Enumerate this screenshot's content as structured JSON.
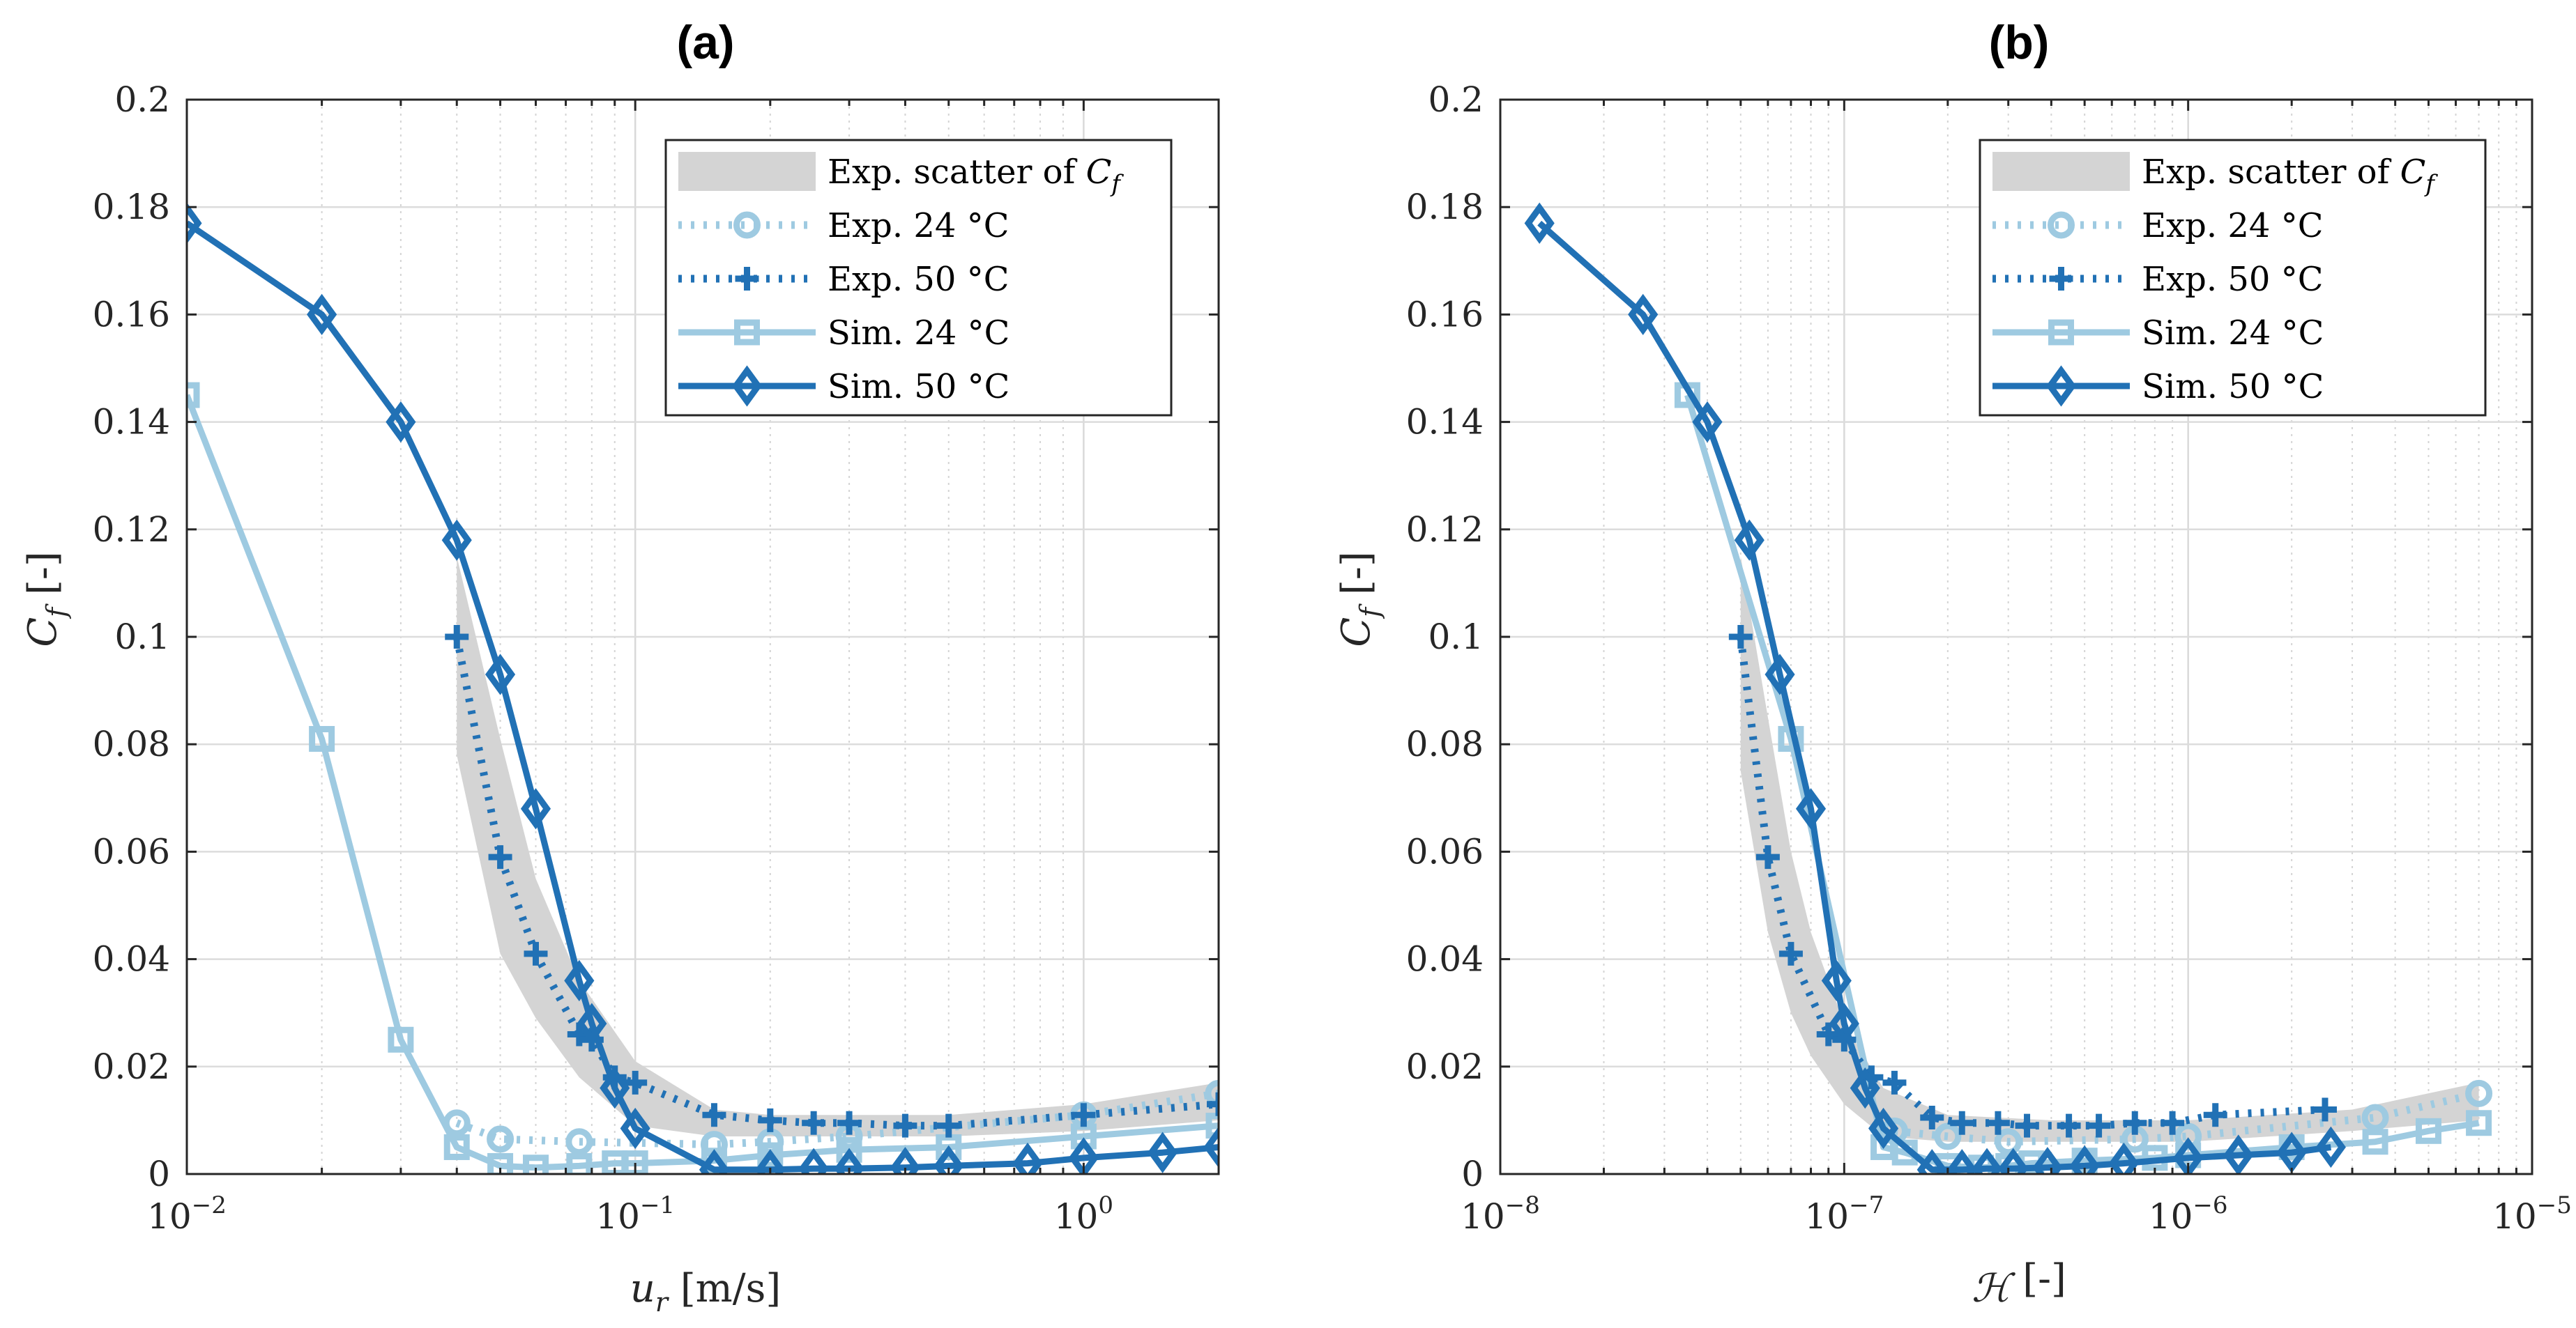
{
  "figure": {
    "panels": [
      {
        "title": "(a)",
        "xlabel": "u_r [m/s]",
        "xlabel_main": "u",
        "xlabel_sub": "r",
        "xlabel_rest": " [m/s]",
        "ylabel": "C_f [-]",
        "ylabel_main": "C",
        "ylabel_sub": "f",
        "ylabel_rest": " [-]",
        "xticks": [
          {
            "value": 0.01,
            "mantissa": "10",
            "exp": "−2"
          },
          {
            "value": 0.1,
            "mantissa": "10",
            "exp": "−1"
          },
          {
            "value": 1,
            "mantissa": "10",
            "exp": "0"
          }
        ]
      },
      {
        "title": "(b)",
        "xlabel": "H [-]",
        "xlabel_main": "ℋ",
        "xlabel_sub": "",
        "xlabel_rest": " [-]",
        "ylabel": "C_f [-]",
        "ylabel_main": "C",
        "ylabel_sub": "f",
        "ylabel_rest": " [-]",
        "xticks": [
          {
            "value": 1e-08,
            "mantissa": "10",
            "exp": "−8"
          },
          {
            "value": 1e-07,
            "mantissa": "10",
            "exp": "−7"
          },
          {
            "value": 1e-06,
            "mantissa": "10",
            "exp": "−6"
          },
          {
            "value": 1e-05,
            "mantissa": "10",
            "exp": "−5"
          }
        ]
      }
    ],
    "yticks": [
      "0",
      "0.02",
      "0.04",
      "0.06",
      "0.08",
      "0.1",
      "0.12",
      "0.14",
      "0.16",
      "0.18",
      "0.2"
    ],
    "legend": [
      {
        "key": "scatter",
        "label": "Exp. scatter of ",
        "label_math": "C",
        "label_sub": "f"
      },
      {
        "key": "exp24",
        "label": "Exp. 24 °C"
      },
      {
        "key": "exp50",
        "label": "Exp. 50 °C"
      },
      {
        "key": "sim24",
        "label": "Sim. 24 °C"
      },
      {
        "key": "sim50",
        "label": "Sim. 50 °C"
      }
    ],
    "colors": {
      "light": "#9ecae1",
      "dark": "#2171b5",
      "scatter_fill": "#d4d4d4",
      "grid": "#dcdcdc",
      "axis": "#262626"
    }
  },
  "chart_data": [
    {
      "type": "line",
      "title": "(a)",
      "xlabel": "u_r [m/s]",
      "ylabel": "C_f [-]",
      "xscale": "log",
      "xlim": [
        0.01,
        2
      ],
      "ylim": [
        0,
        0.2
      ],
      "grid": true,
      "legend_position": "top-right",
      "scatter_band": {
        "name": "Exp. scatter of C_f",
        "x": [
          0.04,
          0.05,
          0.06,
          0.075,
          0.1,
          0.15,
          0.2,
          0.3,
          0.5,
          1.0,
          2.0
        ],
        "lower": [
          0.078,
          0.041,
          0.029,
          0.018,
          0.009,
          0.007,
          0.007,
          0.007,
          0.007,
          0.008,
          0.01
        ],
        "upper": [
          0.115,
          0.081,
          0.055,
          0.036,
          0.021,
          0.012,
          0.011,
          0.011,
          0.011,
          0.013,
          0.017
        ]
      },
      "series": [
        {
          "name": "Exp. 24 °C",
          "key": "exp24",
          "style": "dotted",
          "marker": "circle",
          "x": [
            0.04,
            0.05,
            0.075,
            0.15,
            0.2,
            0.3,
            1.0,
            2.0
          ],
          "y": [
            0.0095,
            0.0065,
            0.006,
            0.0055,
            0.006,
            0.007,
            0.011,
            0.015
          ]
        },
        {
          "name": "Exp. 50 °C",
          "key": "exp50",
          "style": "dotted",
          "marker": "plus",
          "x": [
            0.04,
            0.05,
            0.06,
            0.075,
            0.08,
            0.09,
            0.1,
            0.15,
            0.2,
            0.25,
            0.3,
            0.4,
            0.5,
            1.0,
            2.0
          ],
          "y": [
            0.1,
            0.059,
            0.041,
            0.026,
            0.025,
            0.018,
            0.017,
            0.011,
            0.01,
            0.0095,
            0.0095,
            0.009,
            0.009,
            0.011,
            0.013
          ]
        },
        {
          "name": "Sim. 24 °C",
          "key": "sim24",
          "style": "solid",
          "marker": "square",
          "x": [
            0.01,
            0.02,
            0.03,
            0.04,
            0.05,
            0.06,
            0.075,
            0.09,
            0.1,
            0.15,
            0.2,
            0.3,
            0.5,
            1.0,
            2.0
          ],
          "y": [
            0.145,
            0.081,
            0.025,
            0.005,
            0.0015,
            0.0012,
            0.0015,
            0.002,
            0.002,
            0.0025,
            0.0035,
            0.0045,
            0.005,
            0.007,
            0.009
          ]
        },
        {
          "name": "Sim. 50 °C",
          "key": "sim50",
          "style": "solid",
          "marker": "diamond",
          "x": [
            0.01,
            0.02,
            0.03,
            0.04,
            0.05,
            0.06,
            0.075,
            0.08,
            0.09,
            0.1,
            0.15,
            0.2,
            0.25,
            0.3,
            0.4,
            0.5,
            0.75,
            1.0,
            1.5,
            2.0
          ],
          "y": [
            0.177,
            0.16,
            0.14,
            0.118,
            0.093,
            0.068,
            0.036,
            0.028,
            0.016,
            0.0085,
            0.0008,
            0.0008,
            0.001,
            0.001,
            0.0012,
            0.0015,
            0.002,
            0.003,
            0.004,
            0.005
          ]
        }
      ]
    },
    {
      "type": "line",
      "title": "(b)",
      "xlabel": "H [-]",
      "ylabel": "C_f [-]",
      "xscale": "log",
      "xlim": [
        1e-08,
        1e-05
      ],
      "ylim": [
        0,
        0.2
      ],
      "grid": true,
      "legend_position": "top-right",
      "scatter_band": {
        "name": "Exp. scatter of C_f",
        "x": [
          5e-08,
          6e-08,
          7e-08,
          8e-08,
          1e-07,
          1.3e-07,
          2e-07,
          4e-07,
          1e-06,
          3e-06,
          7e-06
        ],
        "lower": [
          0.075,
          0.045,
          0.03,
          0.022,
          0.013,
          0.007,
          0.006,
          0.006,
          0.006,
          0.008,
          0.01
        ],
        "upper": [
          0.115,
          0.085,
          0.06,
          0.045,
          0.028,
          0.016,
          0.011,
          0.01,
          0.01,
          0.012,
          0.017
        ]
      },
      "series": [
        {
          "name": "Exp. 24 °C",
          "key": "exp24",
          "style": "dotted",
          "marker": "circle",
          "x": [
            1.4e-07,
            2e-07,
            3e-07,
            7e-07,
            1e-06,
            3.5e-06,
            7e-06
          ],
          "y": [
            0.008,
            0.007,
            0.006,
            0.0065,
            0.007,
            0.0105,
            0.015
          ]
        },
        {
          "name": "Exp. 50 °C",
          "key": "exp50",
          "style": "dotted",
          "marker": "plus",
          "x": [
            5e-08,
            6e-08,
            7e-08,
            9e-08,
            1e-07,
            1.2e-07,
            1.4e-07,
            1.8e-07,
            2.2e-07,
            2.8e-07,
            3.4e-07,
            4.5e-07,
            5.5e-07,
            7e-07,
            9e-07,
            1.2e-06,
            2.5e-06
          ],
          "y": [
            0.1,
            0.059,
            0.041,
            0.026,
            0.025,
            0.018,
            0.017,
            0.0105,
            0.0095,
            0.0095,
            0.009,
            0.009,
            0.009,
            0.0095,
            0.0095,
            0.011,
            0.012
          ]
        },
        {
          "name": "Sim. 24 °C",
          "key": "sim24",
          "style": "solid",
          "marker": "square",
          "x": [
            3.5e-08,
            7e-08,
            1.3e-07,
            1.5e-07,
            2e-07,
            2.5e-07,
            3e-07,
            3.5e-07,
            5e-07,
            8e-07,
            1e-06,
            2e-06,
            3.5e-06,
            5e-06,
            7e-06
          ],
          "y": [
            0.145,
            0.081,
            0.005,
            0.004,
            0.0015,
            0.0012,
            0.0015,
            0.002,
            0.0025,
            0.003,
            0.0035,
            0.005,
            0.006,
            0.008,
            0.0095
          ]
        },
        {
          "name": "Sim. 50 °C",
          "key": "sim50",
          "style": "solid",
          "marker": "diamond",
          "x": [
            1.3e-08,
            2.6e-08,
            4e-08,
            5.3e-08,
            6.5e-08,
            8e-08,
            9.5e-08,
            1e-07,
            1.15e-07,
            1.3e-07,
            1.8e-07,
            2.2e-07,
            2.6e-07,
            3.1e-07,
            3.9e-07,
            5e-07,
            6.5e-07,
            1e-06,
            1.4e-06,
            2e-06,
            2.6e-06
          ],
          "y": [
            0.177,
            0.16,
            0.14,
            0.118,
            0.093,
            0.068,
            0.036,
            0.028,
            0.016,
            0.0085,
            0.0008,
            0.0008,
            0.001,
            0.001,
            0.0012,
            0.0015,
            0.002,
            0.003,
            0.0035,
            0.004,
            0.005
          ]
        }
      ]
    }
  ]
}
